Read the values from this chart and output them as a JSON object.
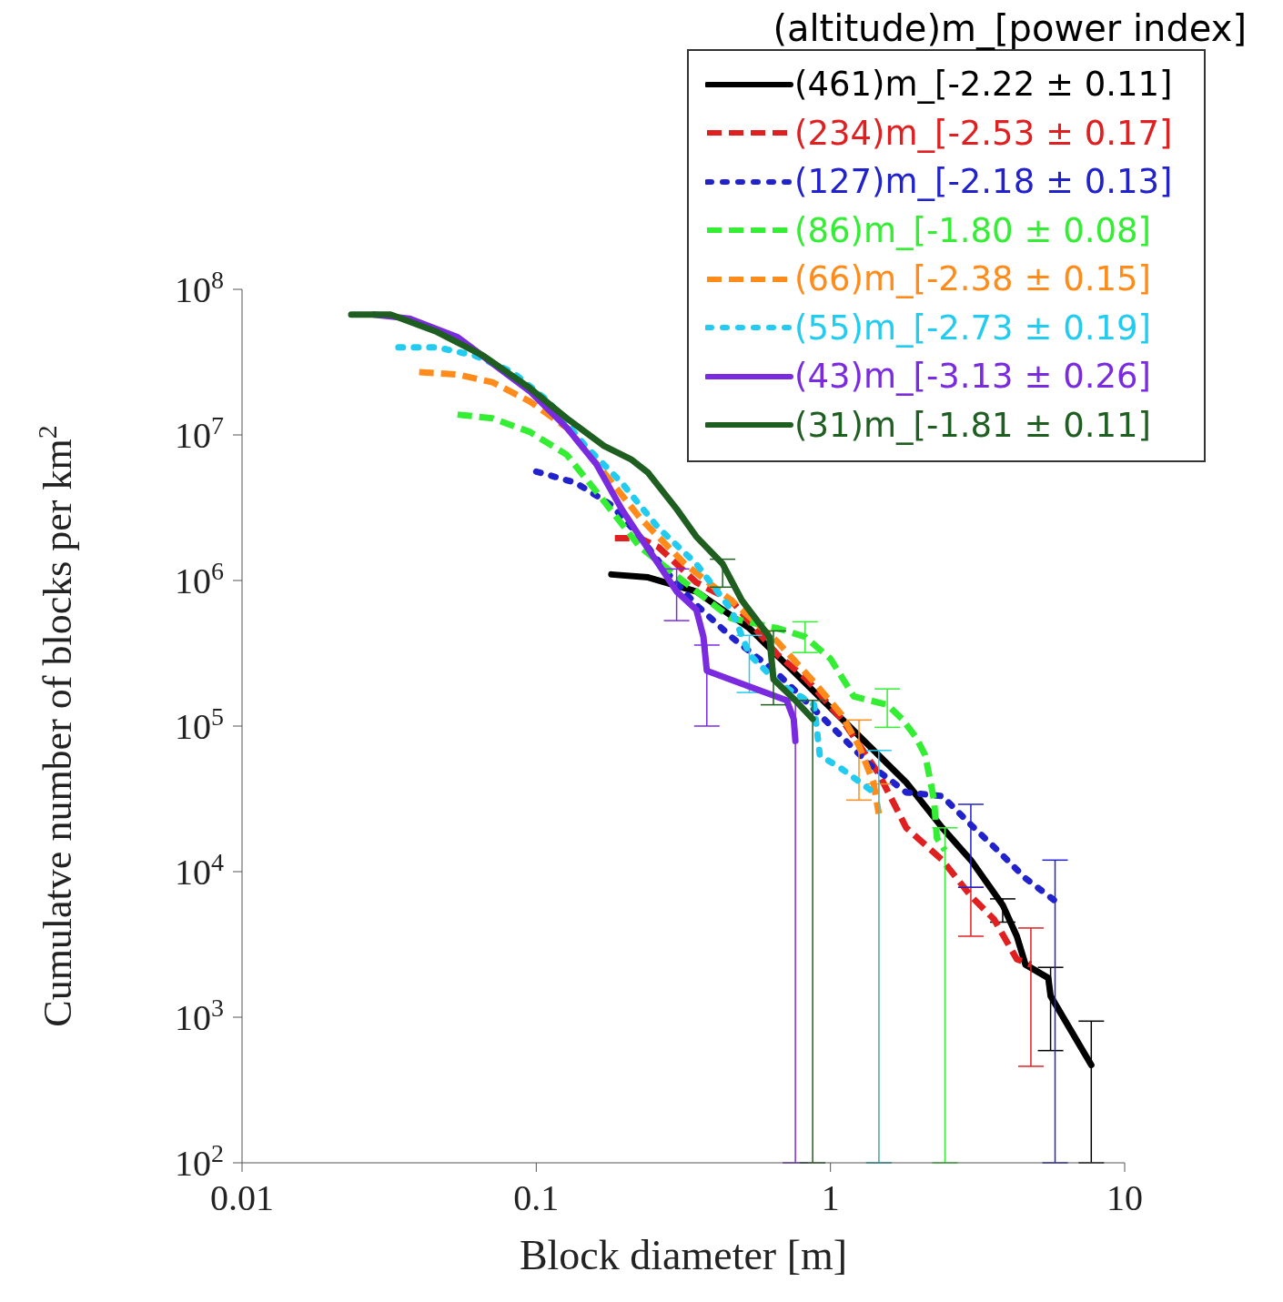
{
  "chart_data": {
    "type": "line",
    "xlabel": "Block diameter [m]",
    "ylabel": "Cumulatve number of blocks per km$^{2}$",
    "legend_title": "(altitude)m_[power index]",
    "log": "xy",
    "legend": "top right",
    "marker": "none",
    "xlim": [
      0.01,
      10
    ],
    "xticks": [
      0.01,
      0.1,
      1,
      10
    ],
    "ylim": [
      100,
      100000000
    ],
    "yticks": [
      {
        "value": 100,
        "label": "10$^{2}$"
      },
      {
        "value": 1000,
        "label": "10$^{3}$"
      },
      {
        "value": 10000,
        "label": "10$^{4}$"
      },
      {
        "value": 100000,
        "label": "10$^{5}$"
      },
      {
        "value": 1000000,
        "label": "10$^{6}$"
      },
      {
        "value": 10000000,
        "label": "10$^{7}$"
      },
      {
        "value": 100000000,
        "label": "10$^{8}$"
      }
    ],
    "series": [
      {
        "name": "(461)m_[-2.22 ± 0.11]",
        "color": "#000000",
        "line_style": "solid",
        "x": [
          0.18,
          0.24,
          0.35,
          0.53,
          0.76,
          1.17,
          1.81,
          2.4,
          3.0,
          3.85,
          4.3,
          4.6,
          5.5,
          5.6,
          7.7
        ],
        "values": [
          1100000,
          1050000,
          840000,
          470000,
          230000,
          98000,
          41000,
          20000,
          12000,
          5900,
          3600,
          2300,
          1860,
          1400,
          470
        ],
        "errors": [
          null,
          null,
          null,
          null,
          null,
          null,
          null,
          null,
          null,
          [
            4500,
            6500
          ],
          null,
          null,
          null,
          [
            590,
            2200
          ],
          [
            100,
            940
          ]
        ]
      },
      {
        "name": "(234)m_[-2.53 ± 0.17]",
        "color": "#e02020",
        "line_style": "dashed",
        "x": [
          0.185,
          0.225,
          0.26,
          0.35,
          0.46,
          0.66,
          0.82,
          1.09,
          1.46,
          1.81,
          2.4,
          3.0,
          3.6,
          4.3,
          4.8
        ],
        "values": [
          1950000,
          1950000,
          1700000,
          970000,
          730000,
          310000,
          215000,
          112000,
          47000,
          20000,
          12000,
          6800,
          4700,
          2500,
          2300
        ],
        "errors": [
          null,
          null,
          null,
          null,
          null,
          null,
          null,
          null,
          null,
          null,
          null,
          [
            3600,
            7800
          ],
          null,
          null,
          [
            460,
            4100
          ]
        ]
      },
      {
        "name": "(127)m_[-2.18 ± 0.13]",
        "color": "#2222cc",
        "line_style": "dotted",
        "x": [
          0.1,
          0.136,
          0.18,
          0.225,
          0.28,
          0.35,
          0.46,
          0.66,
          0.95,
          1.35,
          1.81,
          2.4,
          3.0,
          3.7,
          4.6,
          5.8
        ],
        "values": [
          5600000,
          4700000,
          3300000,
          2000000,
          1120000,
          680000,
          410000,
          230000,
          112000,
          55000,
          35000,
          33000,
          21000,
          14000,
          9000,
          6300
        ],
        "errors": [
          null,
          null,
          null,
          null,
          null,
          null,
          null,
          null,
          null,
          null,
          null,
          null,
          [
            7800,
            29000
          ],
          null,
          null,
          [
            100,
            12000
          ]
        ]
      },
      {
        "name": "(86)m_[-1.80 ± 0.08]",
        "color": "#33ee33",
        "line_style": "dashed",
        "x": [
          0.054,
          0.071,
          0.095,
          0.127,
          0.17,
          0.225,
          0.32,
          0.46,
          0.66,
          0.82,
          1.0,
          1.2,
          1.56,
          1.75,
          1.95,
          2.1,
          2.25,
          2.3,
          2.45
        ],
        "values": [
          13800000,
          13000000,
          10500000,
          7300000,
          3500000,
          1700000,
          970000,
          550000,
          470000,
          410000,
          290000,
          160000,
          140000,
          112000,
          84000,
          63000,
          31000,
          17000,
          14000
        ],
        "errors": [
          null,
          null,
          null,
          null,
          null,
          null,
          null,
          null,
          null,
          [
            320000,
            520000
          ],
          null,
          null,
          [
            98000,
            180000
          ],
          null,
          null,
          null,
          null,
          null,
          [
            100,
            20000
          ]
        ]
      },
      {
        "name": "(66)m_[-2.38 ± 0.15]",
        "color": "#ff8c1a",
        "line_style": "dashed",
        "x": [
          0.04,
          0.054,
          0.071,
          0.095,
          0.127,
          0.17,
          0.225,
          0.32,
          0.46,
          0.66,
          0.88,
          1.09,
          1.25,
          1.4,
          1.46
        ],
        "values": [
          27000000,
          26000000,
          23000000,
          17000000,
          11200000,
          5500000,
          2700000,
          1300000,
          730000,
          380000,
          200000,
          120000,
          73000,
          41000,
          25000
        ],
        "errors": [
          null,
          null,
          null,
          null,
          null,
          null,
          null,
          null,
          null,
          null,
          null,
          null,
          [
            31000,
            110000
          ],
          null,
          [
            100,
            40000
          ]
        ]
      },
      {
        "name": "(55)m_[-2.73 ± 0.19]",
        "color": "#22ccf0",
        "line_style": "dotted",
        "x": [
          0.034,
          0.046,
          0.062,
          0.083,
          0.11,
          0.147,
          0.195,
          0.26,
          0.35,
          0.46,
          0.53,
          0.66,
          0.88,
          0.92,
          1.09,
          1.46
        ],
        "values": [
          40000000,
          40000000,
          35000000,
          27000000,
          17000000,
          8400000,
          4700000,
          2300000,
          1300000,
          630000,
          310000,
          200000,
          140000,
          63000,
          51000,
          33000
        ],
        "errors": [
          null,
          null,
          null,
          null,
          null,
          null,
          null,
          null,
          null,
          null,
          [
            170000,
            420000
          ],
          null,
          null,
          null,
          null,
          [
            100,
            68000
          ]
        ]
      },
      {
        "name": "(43)m_[-3.13 ± 0.26]",
        "color": "#7a2be0",
        "line_style": "solid",
        "x": [
          0.028,
          0.037,
          0.054,
          0.071,
          0.095,
          0.127,
          0.16,
          0.195,
          0.225,
          0.26,
          0.3,
          0.35,
          0.37,
          0.38,
          0.71,
          0.75,
          0.76
        ],
        "values": [
          67000000,
          63000000,
          47000000,
          31000000,
          20000000,
          11200000,
          6300000,
          3100000,
          2000000,
          1300000,
          840000,
          630000,
          410000,
          240000,
          150000,
          112000,
          79000
        ],
        "errors": [
          null,
          null,
          null,
          null,
          null,
          null,
          null,
          null,
          null,
          null,
          [
            530000,
            1200000
          ],
          null,
          null,
          [
            100000,
            360000
          ],
          null,
          null,
          [
            100,
            150000
          ]
        ]
      },
      {
        "name": "(31)m_[-1.81 ± 0.11]",
        "color": "#1e5e20",
        "line_style": "solid",
        "x": [
          0.0235,
          0.032,
          0.046,
          0.066,
          0.095,
          0.127,
          0.17,
          0.21,
          0.24,
          0.3,
          0.35,
          0.43,
          0.5,
          0.62,
          0.64,
          0.76,
          0.87
        ],
        "values": [
          67000000,
          67000000,
          51000000,
          35000000,
          21000000,
          13000000,
          8400000,
          6800000,
          5500000,
          3100000,
          2000000,
          1300000,
          730000,
          410000,
          210000,
          150000,
          112000
        ],
        "errors": [
          null,
          null,
          null,
          null,
          null,
          null,
          null,
          null,
          null,
          null,
          null,
          [
            900000,
            1400000
          ],
          null,
          null,
          [
            140000,
            450000
          ],
          null,
          [
            100,
            150000
          ]
        ]
      }
    ]
  }
}
